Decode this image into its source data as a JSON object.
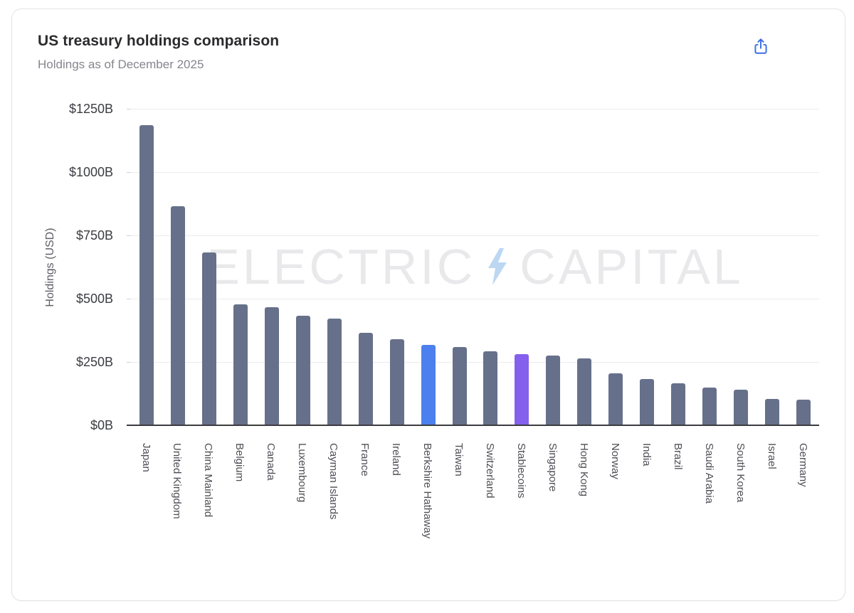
{
  "header": {
    "title": "US treasury holdings comparison",
    "subtitle": "Holdings as of December 2025"
  },
  "toolbar": {
    "share_icon": "share-export-icon",
    "share_color": "#3c6fe3"
  },
  "watermark": {
    "left": "ELECTRIC",
    "right": "CAPITAL",
    "bolt_icon": "lightning-bolt-icon",
    "text_color": "#e9e9eb",
    "bolt_color": "#bdd7f3"
  },
  "chart_data": {
    "type": "bar",
    "title": "US treasury holdings comparison",
    "subtitle": "Holdings as of December 2025",
    "xlabel": "",
    "ylabel": "Holdings (USD)",
    "unit": "USD billions",
    "ylim": [
      0,
      1250
    ],
    "ytick_labels": [
      "$0B",
      "$250B",
      "$500B",
      "$750B",
      "$1000B",
      "$1250B"
    ],
    "grid": true,
    "legend": false,
    "categories": [
      "Japan",
      "United Kingdom",
      "China Mainland",
      "Belgium",
      "Canada",
      "Luxembourg",
      "Cayman Islands",
      "France",
      "Ireland",
      "Berkshire Hathaway",
      "Taiwan",
      "Switzerland",
      "Stablecoins",
      "Singapore",
      "Hong Kong",
      "Norway",
      "India",
      "Brazil",
      "Saudi Arabia",
      "South Korea",
      "Israel",
      "Germany"
    ],
    "values": [
      1185,
      865,
      683,
      478,
      465,
      432,
      420,
      365,
      340,
      318,
      310,
      293,
      280,
      276,
      263,
      204,
      183,
      167,
      149,
      141,
      103,
      101
    ],
    "bar_color_default": "#66708A",
    "highlights": {
      "Berkshire Hathaway": "#4B80EE",
      "Stablecoins": "#8560EC"
    }
  }
}
